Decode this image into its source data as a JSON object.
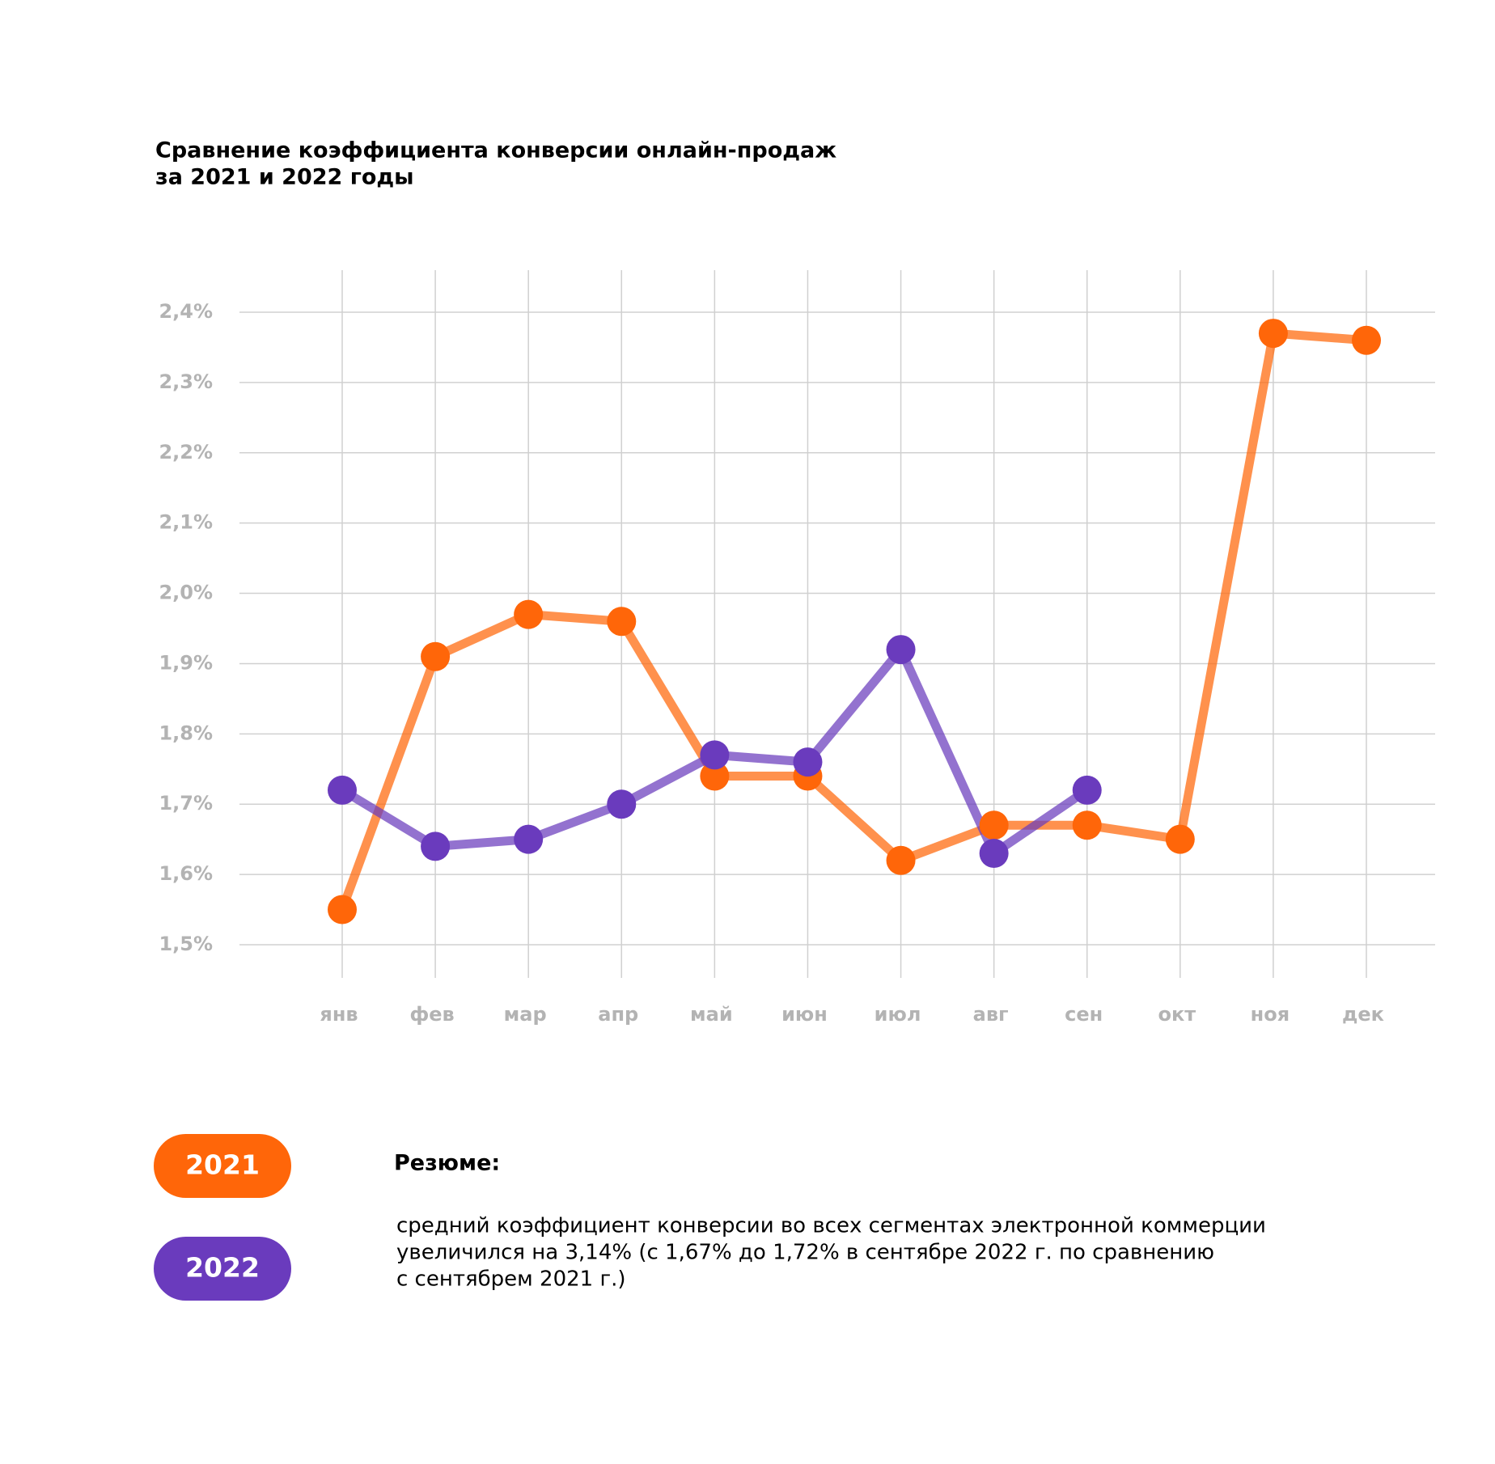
{
  "chart_data": {
    "type": "line",
    "title": [
      "Сравнение коэффициента конверсии онлайн-продаж",
      "за 2021 и 2022 годы"
    ],
    "categories": [
      "янв",
      "фев",
      "мар",
      "апр",
      "май",
      "июн",
      "июл",
      "авг",
      "сен",
      "окт",
      "ноя",
      "дек"
    ],
    "series": [
      {
        "name": "2021",
        "color": "#ff6609",
        "values": [
          1.55,
          1.91,
          1.97,
          1.96,
          1.74,
          1.74,
          1.62,
          1.67,
          1.67,
          1.65,
          2.37,
          2.36
        ]
      },
      {
        "name": "2022",
        "color": "#6a3bbd",
        "values": [
          1.72,
          1.64,
          1.65,
          1.7,
          1.77,
          1.76,
          1.92,
          1.63,
          1.72,
          null,
          null,
          null
        ]
      }
    ],
    "ylim": [
      1.5,
      2.4
    ],
    "yticks": [
      {
        "value": 1.5,
        "label": "1,5%"
      },
      {
        "value": 1.6,
        "label": "1,6%"
      },
      {
        "value": 1.7,
        "label": "1,7%"
      },
      {
        "value": 1.8,
        "label": "1,8%"
      },
      {
        "value": 1.9,
        "label": "1,9%"
      },
      {
        "value": 2.0,
        "label": "2,0%"
      },
      {
        "value": 2.1,
        "label": "2,1%"
      },
      {
        "value": 2.2,
        "label": "2,2%"
      },
      {
        "value": 2.3,
        "label": "2,3%"
      },
      {
        "value": 2.4,
        "label": "2,4%"
      }
    ],
    "grid": true,
    "summary_title": "Резюме:",
    "summary_text": [
      "средний коэффициент конверсии во всех сегментах электронной коммерции",
      "увеличился на 3,14% (с 1,67% до 1,72% в сентябре 2022 г. по сравнению",
      "с сентябрем 2021 г.)"
    ]
  }
}
